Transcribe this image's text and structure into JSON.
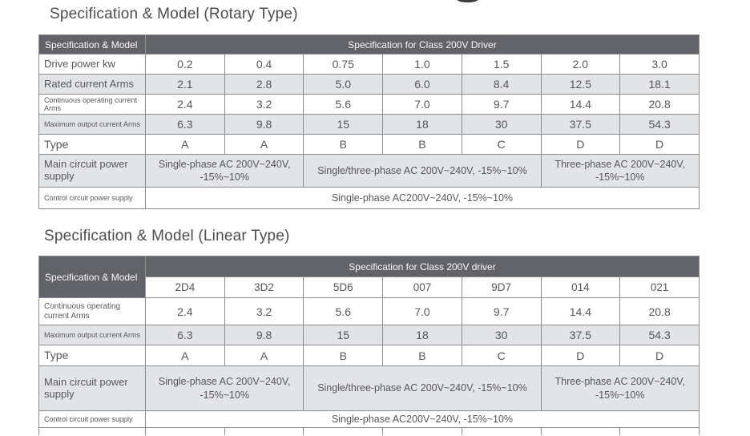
{
  "colors": {
    "header_bg": "#626368",
    "header_text": "#f9f9f9",
    "shaded_row_bg": "#e3e4e6",
    "border": "#898b8e",
    "cell_text": "#55575b",
    "title_text": "#4c4d50"
  },
  "rotary": {
    "title": "Specification & Model (Rotary Type)",
    "corner_label": "Specification & Model",
    "header_span": "Specification for Class 200V Driver",
    "rows": [
      {
        "label": "Drive power kw",
        "values": [
          "0.2",
          "0.4",
          "0.75",
          "1.0",
          "1.5",
          "2.0",
          "3.0"
        ]
      },
      {
        "label": "Rated current Arms",
        "values": [
          "2.1",
          "2.8",
          "5.0",
          "6.0",
          "8.4",
          "12.5",
          "18.1"
        ]
      },
      {
        "label": "Continuous operating current Arms",
        "values": [
          "2.4",
          "3.2",
          "5.6",
          "7.0",
          "9.7",
          "14.4",
          "20.8"
        ]
      },
      {
        "label": "Maximum output current Arms",
        "values": [
          "6.3",
          "9.8",
          "15",
          "18",
          "30",
          "37.5",
          "54.3"
        ]
      },
      {
        "label": "Type",
        "values": [
          "A",
          "A",
          "B",
          "B",
          "C",
          "D",
          "D"
        ]
      }
    ],
    "main_circuit": {
      "label": "Main circuit power supply",
      "cells": [
        {
          "span": 2,
          "text": "Single-phase AC 200V~240V, -15%~10%"
        },
        {
          "span": 3,
          "text": "Single/three-phase AC 200V~240V, -15%~10%"
        },
        {
          "span": 2,
          "text": "Three-phase AC 200V~240V, -15%~10%"
        }
      ]
    },
    "control_circuit": {
      "label": "Control circuit power supply",
      "text": "Single-phase AC200V~240V, -15%~10%"
    }
  },
  "linear": {
    "title": "Specification & Model (Linear Type)",
    "corner_label": "Specification & Model",
    "header_span": "Specification for Class 200V driver",
    "models": [
      "2D4",
      "3D2",
      "5D6",
      "007",
      "9D7",
      "014",
      "021"
    ],
    "rows": [
      {
        "label": "Continuous operating current Arms",
        "values": [
          "2.4",
          "3.2",
          "5.6",
          "7.0",
          "9.7",
          "14.4",
          "20.8"
        ]
      },
      {
        "label": "Maximum output current Arms",
        "values": [
          "6.3",
          "9.8",
          "15",
          "18",
          "30",
          "37.5",
          "54.3"
        ]
      },
      {
        "label": "Type",
        "values": [
          "A",
          "A",
          "B",
          "B",
          "C",
          "D",
          "D"
        ]
      }
    ],
    "main_circuit": {
      "label": "Main circuit power supply",
      "cells": [
        {
          "span": 2,
          "text": "Single-phase AC 200V~240V, -15%~10%"
        },
        {
          "span": 3,
          "text": "Single/three-phase AC 200V~240V, -15%~10%"
        },
        {
          "span": 2,
          "text": "Three-phase AC 200V~240V, -15%~10%"
        }
      ]
    },
    "control_circuit": {
      "label": "Control circuit power supply",
      "text": "Single-phase AC200V~240V, -15%~10%"
    }
  }
}
